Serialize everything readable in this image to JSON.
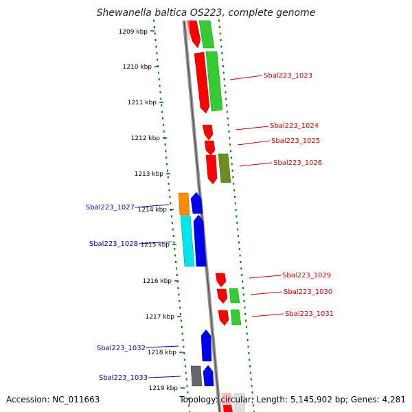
{
  "title": "Shewanella baltica OS223, complete genome",
  "accession": "Accession: NC_011663",
  "topology": "Topology: circular; Length: 5,145,902 bp; Genes: 4,281",
  "kbp_labels": [
    "1209 kbp",
    "1210 kbp",
    "1211 kbp",
    "1212 kbp",
    "1213 kbp",
    "1214 kbp",
    "1215 kbp",
    "1216 kbp",
    "1217 kbp",
    "1218 kbp",
    "1219 kbp"
  ],
  "right_labels": [
    "Sbal223_1023",
    "Sbal223_1024",
    "Sbal223_1025",
    "Sbal223_1026",
    "Sbal223_1029",
    "Sbal223_1030",
    "Sbal223_1031"
  ],
  "left_labels": [
    "Sbal223_1027",
    "Sbal223_1028",
    "Sbal223_1032",
    "Sbal223_1033"
  ],
  "colors": {
    "cds_red": "#ff0000",
    "cds_green": "#33cc33",
    "cds_olive": "#6b8e23",
    "cds_blue": "#0000ee",
    "cds_cyan": "#00e5ee",
    "cds_orange": "#ff8c00",
    "cds_gray": "#666666",
    "label_red": "#cc0000",
    "label_blue": "#0000aa",
    "backbone": "#888888",
    "ticks": "#008000"
  }
}
